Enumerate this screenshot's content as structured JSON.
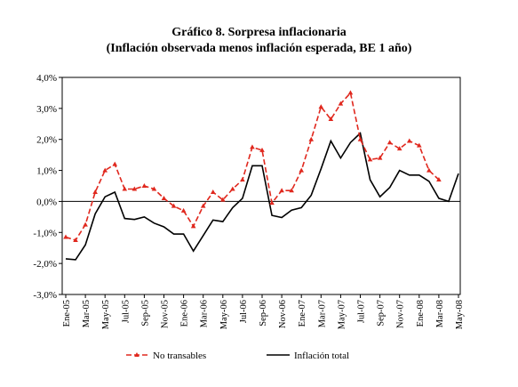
{
  "chart_data": {
    "type": "line",
    "title": "Gráfico 8. Sorpresa inflacionaria",
    "subtitle": "(Inflación observada menos inflación esperada, BE 1 año)",
    "ylim": [
      -3.0,
      4.0
    ],
    "y_ticks": [
      "-3,0%",
      "-2,0%",
      "-1,0%",
      "0,0%",
      "1,0%",
      "2,0%",
      "3,0%",
      "4,0%"
    ],
    "x_tick_labels": [
      "Ene-05",
      "Mar-05",
      "May-05",
      "Jul-05",
      "Sep-05",
      "Nov-05",
      "Ene-06",
      "Mar-06",
      "May-06",
      "Jul-06",
      "Sep-06",
      "Nov-06",
      "Ene-07",
      "Mar-07",
      "May-07",
      "Jul-07",
      "Sep-07",
      "Nov-07",
      "Ene-08",
      "Mar-08",
      "May-08"
    ],
    "x": [
      "Ene-05",
      "Feb-05",
      "Mar-05",
      "Abr-05",
      "May-05",
      "Jun-05",
      "Jul-05",
      "Ago-05",
      "Sep-05",
      "Oct-05",
      "Nov-05",
      "Dic-05",
      "Ene-06",
      "Feb-06",
      "Mar-06",
      "Abr-06",
      "May-06",
      "Jun-06",
      "Jul-06",
      "Ago-06",
      "Sep-06",
      "Oct-06",
      "Nov-06",
      "Dic-06",
      "Ene-07",
      "Feb-07",
      "Mar-07",
      "Abr-07",
      "May-07",
      "Jun-07",
      "Jul-07",
      "Ago-07",
      "Sep-07",
      "Oct-07",
      "Nov-07",
      "Dic-07",
      "Ene-08",
      "Feb-08",
      "Mar-08",
      "Abr-08",
      "May-08"
    ],
    "series": [
      {
        "name": "No transables",
        "color": "#e0281e",
        "style": "dashed-triangle",
        "values": [
          -1.15,
          -1.25,
          -0.75,
          0.3,
          1.0,
          1.2,
          0.4,
          0.4,
          0.5,
          0.4,
          0.1,
          -0.15,
          -0.3,
          -0.8,
          -0.15,
          0.3,
          0.05,
          0.4,
          0.7,
          1.75,
          1.65,
          -0.05,
          0.35,
          0.35,
          1.0,
          2.0,
          3.05,
          2.65,
          3.15,
          3.5,
          2.0,
          1.35,
          1.4,
          1.9,
          1.7,
          1.95,
          1.8,
          1.0,
          0.7,
          null,
          null
        ]
      },
      {
        "name": "Inflación total",
        "color": "#000000",
        "style": "solid",
        "values": [
          -1.85,
          -1.88,
          -1.4,
          -0.4,
          0.15,
          0.3,
          -0.55,
          -0.58,
          -0.5,
          -0.7,
          -0.82,
          -1.05,
          -1.05,
          -1.6,
          -1.1,
          -0.6,
          -0.65,
          -0.2,
          0.1,
          1.15,
          1.15,
          -0.45,
          -0.52,
          -0.28,
          -0.2,
          0.2,
          1.05,
          1.95,
          1.4,
          1.9,
          2.2,
          0.7,
          0.15,
          0.45,
          1.0,
          0.85,
          0.85,
          0.65,
          0.1,
          0.0,
          0.9
        ]
      }
    ],
    "legend_position": "bottom",
    "grid": false
  }
}
